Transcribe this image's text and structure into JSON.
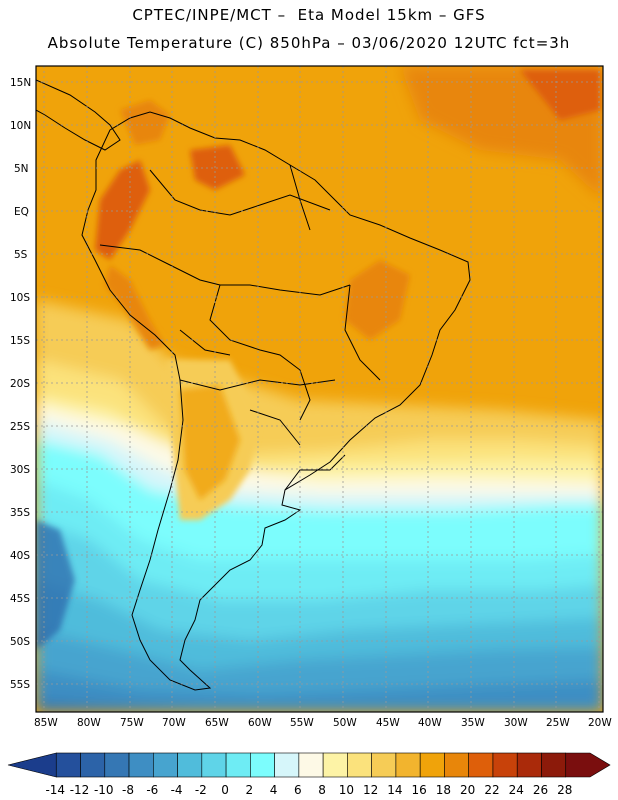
{
  "header": {
    "title_line1": "CPTEC/INPE/MCT –  Eta Model 15km – GFS",
    "title_line2": "Absolute Temperature (C) 850hPa – 03/06/2020 12UTC fct=3h"
  },
  "map": {
    "lat_labels": [
      "15N",
      "10N",
      "5N",
      "EQ",
      "5S",
      "10S",
      "15S",
      "20S",
      "25S",
      "30S",
      "35S",
      "40S",
      "45S",
      "50S",
      "55S"
    ],
    "lon_labels": [
      "85W",
      "80W",
      "75W",
      "70W",
      "65W",
      "60W",
      "55W",
      "50W",
      "45W",
      "40W",
      "35W",
      "30W",
      "25W",
      "20W"
    ]
  },
  "colorbar": {
    "ticks": [
      "-14",
      "-12",
      "-10",
      "-8",
      "-6",
      "-4",
      "-2",
      "0",
      "2",
      "4",
      "6",
      "8",
      "10",
      "12",
      "14",
      "16",
      "18",
      "20",
      "22",
      "24",
      "26",
      "28"
    ],
    "colors": [
      "#1b3d8c",
      "#24509c",
      "#2c63a8",
      "#3577b4",
      "#3e8ec3",
      "#47a4cf",
      "#50bcdb",
      "#5fd4e8",
      "#6eecf4",
      "#7cfdfd",
      "#d6f6fa",
      "#fdf9e6",
      "#fdf3a6",
      "#fbe27c",
      "#f6cc56",
      "#f2b42e",
      "#f0a30a",
      "#e8860a",
      "#de5f0a",
      "#c8420a",
      "#aa2a0a",
      "#8c1a0a",
      "#7a0e0e"
    ]
  }
}
